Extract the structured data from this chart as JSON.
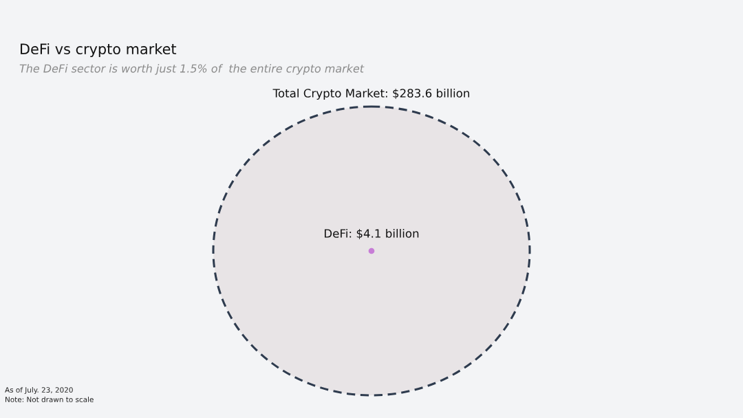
{
  "chart_data": {
    "type": "other",
    "title": "DeFi vs crypto market",
    "subtitle": "The DeFi sector is worth just 1.5% of  the entire crypto market",
    "categories": [
      null,
      null
    ],
    "values": [
      283.6,
      4.1
    ],
    "value_labels": [
      "Total Crypto Market: $283.6 billion",
      "DeFi: $4.1 billion"
    ],
    "colors": [
      "#e8e4e6",
      "#c77dd6"
    ],
    "annotations": [
      "As of July. 23, 2020",
      "Note: Not drawn to scale"
    ]
  }
}
